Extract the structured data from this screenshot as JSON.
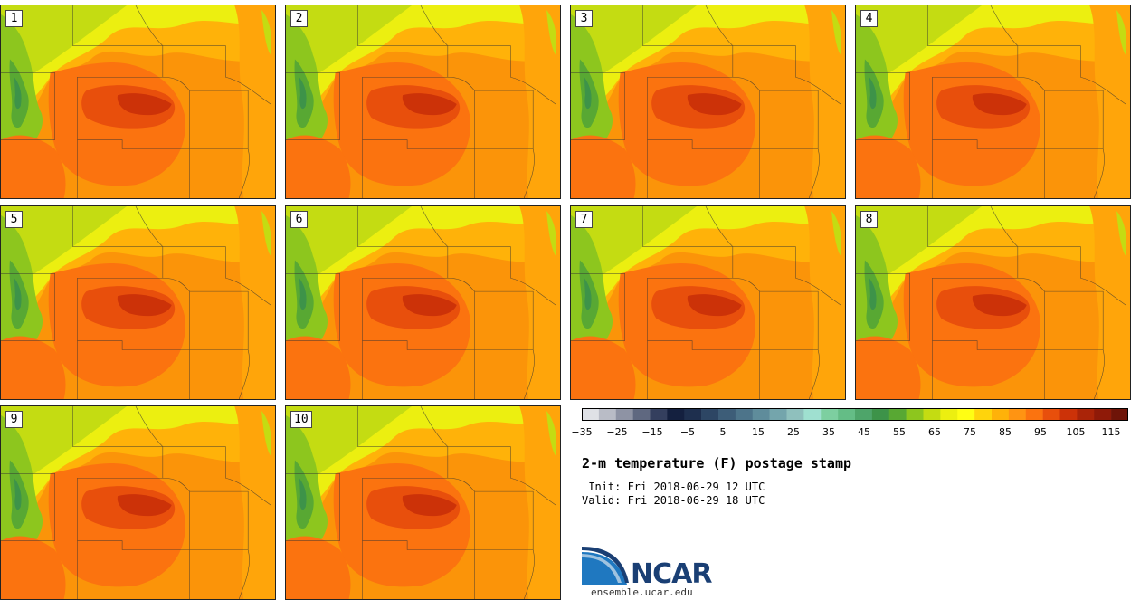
{
  "panels": [
    "1",
    "2",
    "3",
    "4",
    "5",
    "6",
    "7",
    "8",
    "9",
    "10"
  ],
  "colorbar": {
    "colors": [
      "#dfe1e6",
      "#b9bcc6",
      "#8e93a4",
      "#5f6880",
      "#343f5e",
      "#14203f",
      "#1e2f4e",
      "#2d4664",
      "#3d5d78",
      "#4d748a",
      "#5f8c9b",
      "#74a5ac",
      "#8fc0bd",
      "#9fe0d0",
      "#7dcfa0",
      "#64bd86",
      "#4ea56a",
      "#3d9349",
      "#58a833",
      "#8dc61e",
      "#c4dc12",
      "#ecef10",
      "#fffe14",
      "#ffd40c",
      "#ffb209",
      "#ff9412",
      "#fb730f",
      "#e84f0c",
      "#cc3208",
      "#aa2408",
      "#8f1a08",
      "#6e1408"
    ],
    "tick_values": [
      "−35",
      "−25",
      "−15",
      "−5",
      "5",
      "15",
      "25",
      "35",
      "45",
      "55",
      "65",
      "75",
      "85",
      "95",
      "105",
      "115"
    ]
  },
  "title": "2-m temperature (F) postage stamp",
  "init_text": " Init: Fri 2018-06-29 12 UTC",
  "valid_text": "Valid: Fri 2018-06-29 18 UTC",
  "logo": {
    "text": "NCAR",
    "site": "ensemble.ucar.edu"
  }
}
